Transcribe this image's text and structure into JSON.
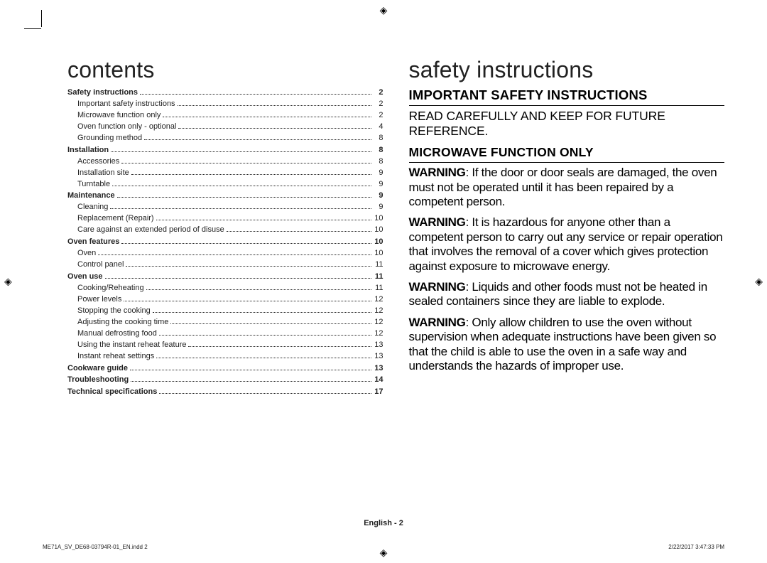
{
  "left": {
    "title": "contents",
    "toc": [
      {
        "label": "Safety instructions",
        "page": "2",
        "main": true
      },
      {
        "label": "Important safety instructions",
        "page": "2"
      },
      {
        "label": "Microwave function only",
        "page": "2"
      },
      {
        "label": "Oven function only - optional",
        "page": "4"
      },
      {
        "label": "Grounding method",
        "page": "8"
      },
      {
        "label": "Installation",
        "page": "8",
        "main": true
      },
      {
        "label": "Accessories",
        "page": "8"
      },
      {
        "label": "Installation site",
        "page": "9"
      },
      {
        "label": "Turntable",
        "page": "9"
      },
      {
        "label": "Maintenance",
        "page": "9",
        "main": true
      },
      {
        "label": "Cleaning",
        "page": "9"
      },
      {
        "label": "Replacement (Repair)",
        "page": "10"
      },
      {
        "label": "Care against an extended period of disuse",
        "page": "10"
      },
      {
        "label": "Oven features",
        "page": "10",
        "main": true
      },
      {
        "label": "Oven",
        "page": "10"
      },
      {
        "label": "Control panel",
        "page": "11"
      },
      {
        "label": "Oven use",
        "page": "11",
        "main": true
      },
      {
        "label": "Cooking/Reheating",
        "page": "11"
      },
      {
        "label": "Power levels",
        "page": "12"
      },
      {
        "label": "Stopping the cooking",
        "page": "12"
      },
      {
        "label": "Adjusting the cooking time",
        "page": "12"
      },
      {
        "label": "Manual defrosting food",
        "page": "12"
      },
      {
        "label": "Using the instant reheat feature",
        "page": "13"
      },
      {
        "label": "Instant reheat settings",
        "page": "13"
      },
      {
        "label": "Cookware guide",
        "page": "13",
        "main": true
      },
      {
        "label": "Troubleshooting",
        "page": "14",
        "main": true
      },
      {
        "label": "Technical specifications",
        "page": "17",
        "main": true
      }
    ]
  },
  "right": {
    "title": "safety instructions",
    "h2": "IMPORTANT SAFETY INSTRUCTIONS",
    "lead": "READ CAREFULLY AND KEEP FOR FUTURE REFERENCE.",
    "h3": "MICROWAVE FUNCTION ONLY",
    "warnLabel": "WARNING",
    "paras": [
      ": If the door or door seals are damaged, the oven must not be operated until it has been repaired by a competent person.",
      ": It is hazardous for anyone other than a competent person to carry out any service or repair operation that involves the removal of a cover which gives protection against exposure to microwave energy.",
      ": Liquids and other foods must not be heated in sealed containers since they are liable to explode.",
      ": Only allow children to use the oven without supervision when adequate instructions have been given so that the child is able to use the oven in a safe way and understands the hazards of improper use."
    ]
  },
  "footer": {
    "center": "English - 2",
    "left": "ME71A_SV_DE68-03794R-01_EN.indd   2",
    "right": "2/22/2017   3:47:33 PM"
  }
}
